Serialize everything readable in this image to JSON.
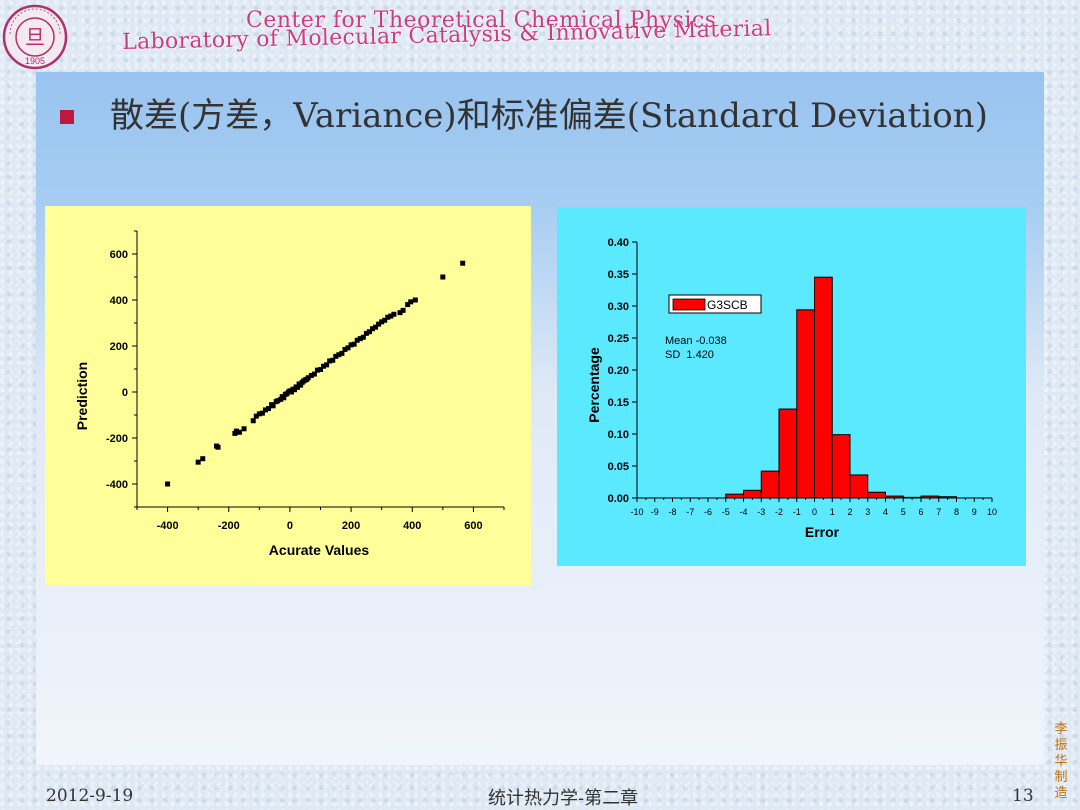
{
  "header": {
    "logo_text": "FUDAN UNIVERSITY 1905",
    "center_line": "Center for Theoretical Chemical Physics",
    "lab_line": "Laboratory of Molecular Catalysis & Innovative Material"
  },
  "slide": {
    "title": "散差(方差，Variance)和标准偏差(Standard Deviation)"
  },
  "chart_data": [
    {
      "type": "scatter",
      "title": "",
      "xlabel": "Acurate Values",
      "ylabel": "Prediction",
      "xlim": [
        -500,
        700
      ],
      "ylim": [
        -500,
        700
      ],
      "xticks": [
        -400,
        -200,
        0,
        200,
        400,
        600
      ],
      "yticks": [
        -400,
        -200,
        0,
        200,
        400,
        600
      ],
      "points": [
        [
          -400,
          -400
        ],
        [
          -300,
          -305
        ],
        [
          -285,
          -290
        ],
        [
          -240,
          -235
        ],
        [
          -235,
          -240
        ],
        [
          -180,
          -180
        ],
        [
          -175,
          -170
        ],
        [
          -165,
          -175
        ],
        [
          -150,
          -160
        ],
        [
          -120,
          -125
        ],
        [
          -110,
          -105
        ],
        [
          -100,
          -95
        ],
        [
          -90,
          -92
        ],
        [
          -80,
          -78
        ],
        [
          -70,
          -72
        ],
        [
          -60,
          -55
        ],
        [
          -55,
          -60
        ],
        [
          -45,
          -42
        ],
        [
          -40,
          -38
        ],
        [
          -30,
          -32
        ],
        [
          -25,
          -20
        ],
        [
          -20,
          -25
        ],
        [
          -15,
          -10
        ],
        [
          -10,
          -8
        ],
        [
          -5,
          0
        ],
        [
          0,
          5
        ],
        [
          5,
          0
        ],
        [
          10,
          12
        ],
        [
          15,
          10
        ],
        [
          20,
          22
        ],
        [
          25,
          20
        ],
        [
          30,
          35
        ],
        [
          35,
          30
        ],
        [
          40,
          42
        ],
        [
          45,
          48
        ],
        [
          50,
          52
        ],
        [
          55,
          55
        ],
        [
          60,
          62
        ],
        [
          70,
          72
        ],
        [
          80,
          78
        ],
        [
          90,
          95
        ],
        [
          100,
          98
        ],
        [
          110,
          112
        ],
        [
          120,
          118
        ],
        [
          130,
          135
        ],
        [
          140,
          138
        ],
        [
          150,
          155
        ],
        [
          160,
          162
        ],
        [
          170,
          168
        ],
        [
          180,
          185
        ],
        [
          190,
          192
        ],
        [
          200,
          205
        ],
        [
          210,
          208
        ],
        [
          220,
          225
        ],
        [
          230,
          232
        ],
        [
          240,
          238
        ],
        [
          250,
          255
        ],
        [
          260,
          262
        ],
        [
          270,
          275
        ],
        [
          280,
          282
        ],
        [
          290,
          295
        ],
        [
          300,
          305
        ],
        [
          310,
          312
        ],
        [
          320,
          325
        ],
        [
          330,
          330
        ],
        [
          340,
          338
        ],
        [
          360,
          345
        ],
        [
          370,
          355
        ],
        [
          385,
          380
        ],
        [
          395,
          392
        ],
        [
          410,
          400
        ],
        [
          500,
          500
        ],
        [
          565,
          560
        ]
      ]
    },
    {
      "type": "bar",
      "title": "",
      "xlabel": "Error",
      "ylabel": "Percentage",
      "xlim": [
        -10,
        10
      ],
      "ylim": [
        0,
        0.4
      ],
      "xticks": [
        -10,
        -9,
        -8,
        -7,
        -6,
        -5,
        -4,
        -3,
        -2,
        -1,
        0,
        1,
        2,
        3,
        4,
        5,
        6,
        7,
        8,
        9,
        10
      ],
      "yticks": [
        "0.00",
        "0.05",
        "0.10",
        "0.15",
        "0.20",
        "0.25",
        "0.30",
        "0.35",
        "0.40"
      ],
      "bin_edges": [
        -5,
        -4,
        -3,
        -2,
        -1,
        0,
        1,
        2,
        3,
        4,
        5,
        6,
        7,
        8
      ],
      "values": [
        0.006,
        0.012,
        0.042,
        0.139,
        0.294,
        0.345,
        0.099,
        0.036,
        0.009,
        0.003,
        0.001,
        0.003,
        0.002
      ],
      "legend": "G3SCB",
      "legend_position": "top-right",
      "bar_color": "#ff0000",
      "stats_line1": "Mean -0.038",
      "stats_line2": "SD  1.420"
    }
  ],
  "footer": {
    "date": "2012-9-19",
    "center": "统计热力学-第二章",
    "page": "13"
  },
  "stamp": "李振华制造"
}
